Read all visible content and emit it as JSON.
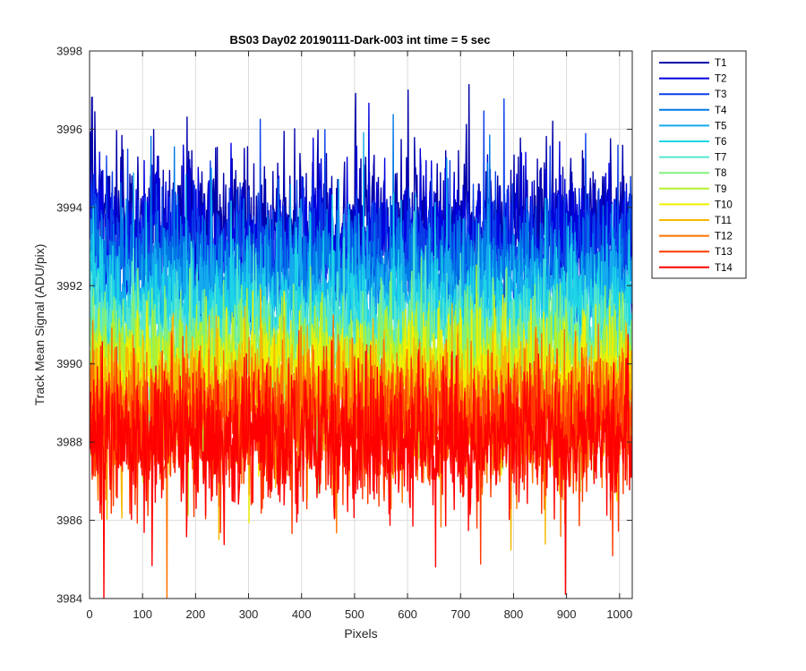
{
  "chart_data": {
    "type": "line",
    "title": "BS03 Day02 20190111-Dark-003 int time = 5 sec",
    "xlabel": "Pixels",
    "ylabel": "Track Mean Signal (ADU/pix)",
    "xlim": [
      0,
      1024
    ],
    "ylim": [
      3984,
      3998
    ],
    "xticks": [
      "0",
      "100",
      "200",
      "300",
      "400",
      "500",
      "600",
      "700",
      "800",
      "900",
      "1000"
    ],
    "yticks": [
      "3984",
      "3986",
      "3988",
      "3990",
      "3992",
      "3994",
      "3996",
      "3998"
    ],
    "grid": true,
    "legend_position": "outside-top-right",
    "n_points": 1024,
    "series": [
      {
        "name": "T1",
        "color": "#0000AA",
        "mean": 3993.6,
        "noise_sd": 0.85
      },
      {
        "name": "T2",
        "color": "#0000E0",
        "mean": 3993.2,
        "noise_sd": 0.8
      },
      {
        "name": "T3",
        "color": "#0A3FE8",
        "mean": 3992.8,
        "noise_sd": 0.78
      },
      {
        "name": "T4",
        "color": "#0078E6",
        "mean": 3992.3,
        "noise_sd": 0.75
      },
      {
        "name": "T5",
        "color": "#14AAEE",
        "mean": 3991.8,
        "noise_sd": 0.72
      },
      {
        "name": "T6",
        "color": "#1ED6E6",
        "mean": 3991.3,
        "noise_sd": 0.72
      },
      {
        "name": "T7",
        "color": "#55E6D0",
        "mean": 3990.8,
        "noise_sd": 0.72
      },
      {
        "name": "T8",
        "color": "#82F07A",
        "mean": 3990.4,
        "noise_sd": 0.72
      },
      {
        "name": "T9",
        "color": "#B4F02C",
        "mean": 3990.0,
        "noise_sd": 0.74
      },
      {
        "name": "T10",
        "color": "#F0F000",
        "mean": 3989.6,
        "noise_sd": 0.76
      },
      {
        "name": "T11",
        "color": "#F5B800",
        "mean": 3989.2,
        "noise_sd": 0.8
      },
      {
        "name": "T12",
        "color": "#FF7300",
        "mean": 3988.8,
        "noise_sd": 0.85
      },
      {
        "name": "T13",
        "color": "#FF3A00",
        "mean": 3988.4,
        "noise_sd": 0.88
      },
      {
        "name": "T14",
        "color": "#FF0000",
        "mean": 3988.1,
        "noise_sd": 0.9
      }
    ]
  }
}
